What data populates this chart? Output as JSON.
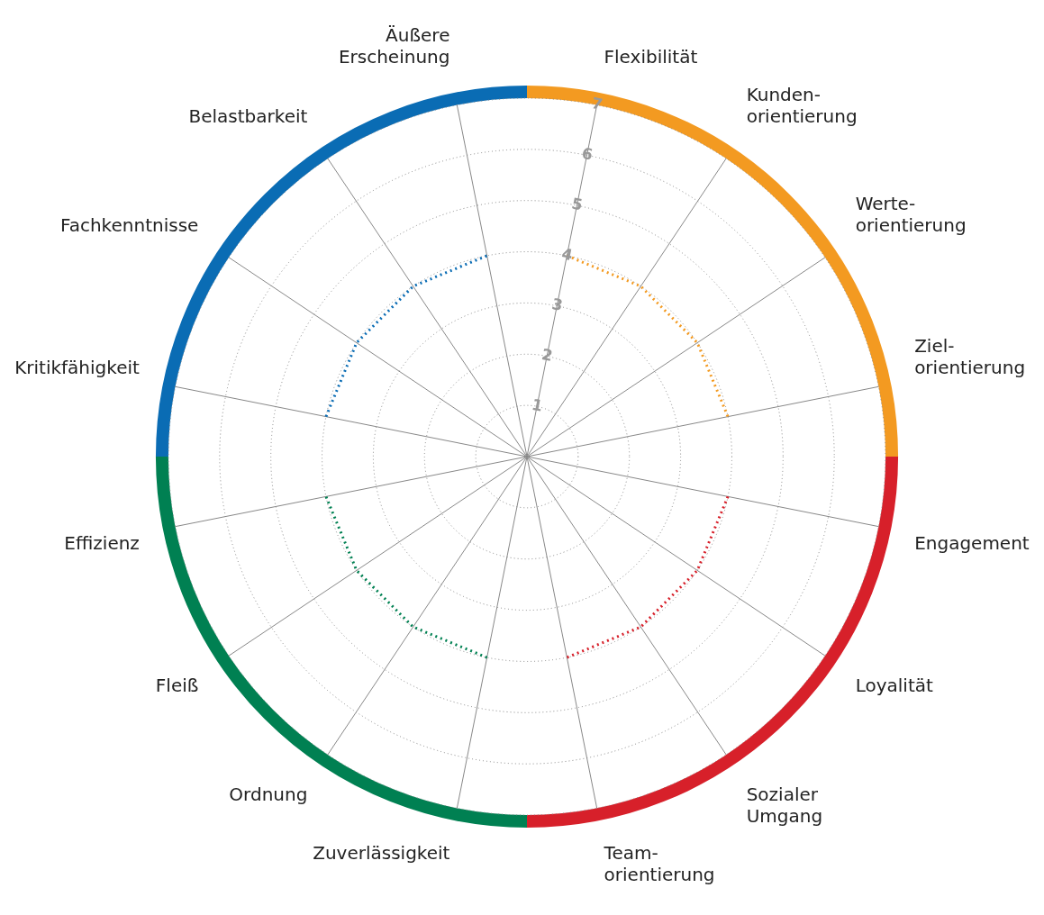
{
  "chart_data": {
    "type": "radar",
    "categories": [
      "Flexibilität",
      "Kunden- orientierung",
      "Werte- orientierung",
      "Ziel- orientierung",
      "Engagement",
      "Loyalität",
      "Sozialer Umgang",
      "Team- orientierung",
      "Zuverlässigkeit",
      "Ordnung",
      "Fleiß",
      "Effizienz",
      "Kritikfähigkeit",
      "Fachkenntnisse",
      "Belastbarkeit",
      "Äußere Erscheinung"
    ],
    "series": [
      {
        "color": "#f39a21",
        "values": [
          4,
          4,
          4,
          4,
          null,
          null,
          null,
          null,
          null,
          null,
          null,
          null,
          null,
          null,
          null,
          null
        ]
      },
      {
        "color": "#d7202a",
        "values": [
          null,
          null,
          null,
          null,
          4,
          4,
          4,
          4,
          null,
          null,
          null,
          null,
          null,
          null,
          null,
          null
        ]
      },
      {
        "color": "#008052",
        "values": [
          null,
          null,
          null,
          null,
          null,
          null,
          null,
          null,
          4,
          4,
          4,
          4,
          null,
          null,
          null,
          null
        ]
      },
      {
        "color": "#0a6cb4",
        "values": [
          null,
          null,
          null,
          null,
          null,
          null,
          null,
          null,
          null,
          null,
          null,
          null,
          4,
          4,
          4,
          4
        ]
      }
    ],
    "ylim": [
      0,
      7
    ],
    "yticks": [
      1,
      2,
      3,
      4,
      5,
      6,
      7
    ],
    "grid": true,
    "legend": false,
    "line_style": "dotted",
    "marker": "none"
  }
}
